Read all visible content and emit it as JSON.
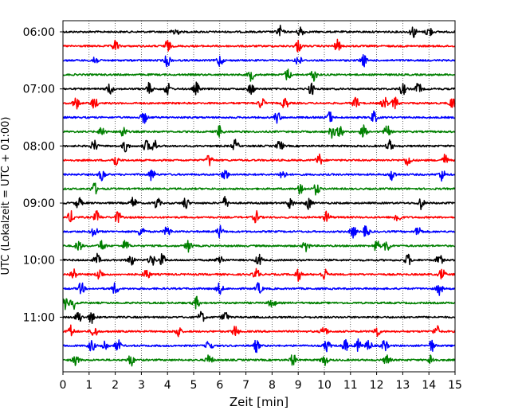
{
  "chart_data": {
    "type": "line",
    "title": "",
    "xlabel": "Zeit  [min]",
    "ylabel": "UTC (Lokalzeit = UTC + 01:00)",
    "xlim": [
      0,
      15
    ],
    "x_ticks": [
      0,
      1,
      2,
      3,
      4,
      5,
      6,
      7,
      8,
      9,
      10,
      11,
      12,
      13,
      14,
      15
    ],
    "x_tick_labels": [
      "0",
      "1",
      "2",
      "3",
      "4",
      "5",
      "6",
      "7",
      "8",
      "9",
      "10",
      "11",
      "12",
      "13",
      "14",
      "15"
    ],
    "y_tick_labels": [
      "06:00",
      "07:00",
      "08:00",
      "09:00",
      "10:00",
      "11:00"
    ],
    "y_tick_rows": [
      0,
      4,
      8,
      12,
      16,
      20
    ],
    "row_count": 24,
    "row_minutes": 15,
    "start_time": "06:00",
    "grid": "vertical dotted",
    "color_cycle": [
      "#000000",
      "#ff0000",
      "#0000ff",
      "#008000"
    ],
    "series_note": "helicorder trace: 24 rows of 15-minute seismogram segments, amplitude not quantified",
    "events": [
      [
        4.3,
        8.3,
        9.1,
        13.4,
        14.0
      ],
      [
        2.0,
        4.0,
        9.0,
        10.5
      ],
      [
        1.2,
        4.0,
        6.0,
        9.0,
        11.5
      ],
      [
        7.2,
        8.6,
        9.6
      ],
      [
        1.8,
        3.3,
        4.0,
        5.1,
        7.2,
        9.5,
        13.0,
        13.6
      ],
      [
        0.5,
        1.2,
        7.6,
        8.5,
        11.2,
        12.3,
        12.7,
        14.9
      ],
      [
        3.1,
        8.2,
        10.2,
        11.9
      ],
      [
        1.5,
        2.3,
        6.0,
        10.3,
        10.6,
        11.5,
        12.4
      ],
      [
        1.2,
        2.4,
        3.2,
        3.5,
        6.6,
        8.3,
        12.5
      ],
      [
        2.0,
        5.6,
        9.8,
        13.2,
        14.6
      ],
      [
        1.5,
        3.4,
        6.2,
        8.4,
        12.6,
        14.5
      ],
      [
        1.2,
        9.1,
        9.7
      ],
      [
        0.6,
        2.7,
        3.6,
        4.7,
        6.2,
        8.7,
        9.4,
        13.7
      ],
      [
        0.3,
        1.3,
        2.1,
        7.4,
        10.1,
        12.8
      ],
      [
        1.2,
        3.0,
        4.0,
        6.0,
        11.1,
        11.6,
        13.6
      ],
      [
        0.6,
        1.5,
        2.4,
        4.8,
        9.3,
        12.0,
        12.4
      ],
      [
        1.3,
        2.6,
        3.4,
        3.8,
        6.0,
        7.5,
        13.2,
        14.4
      ],
      [
        0.4,
        1.4,
        3.2,
        7.4,
        9.0,
        10.0,
        14.5
      ],
      [
        0.7,
        2.0,
        6.0,
        7.5,
        14.4
      ],
      [
        0.1,
        0.4,
        5.1,
        8.0
      ],
      [
        0.6,
        1.1,
        5.3,
        6.2
      ],
      [
        0.3,
        1.2,
        4.4,
        6.6,
        10.0,
        12.0,
        14.3
      ],
      [
        1.1,
        1.6,
        2.1,
        5.6,
        7.4,
        10.1,
        10.8,
        11.3,
        11.7,
        12.3,
        14.1
      ],
      [
        0.5,
        2.6,
        5.6,
        8.8,
        10.0,
        12.4,
        14.1
      ]
    ]
  }
}
